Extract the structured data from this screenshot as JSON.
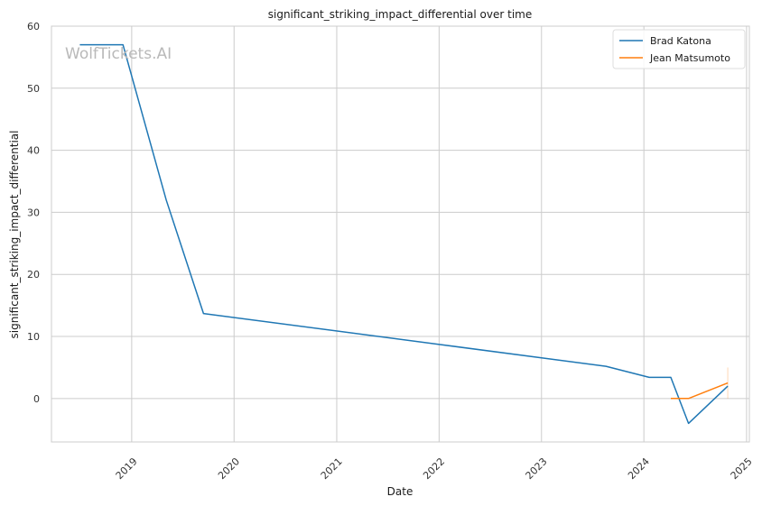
{
  "chart_data": {
    "type": "line",
    "title": "significant_striking_impact_differential over time",
    "xlabel": "Date",
    "ylabel": "significant_striking_impact_differential",
    "watermark": "WolfTickets.AI",
    "xlim": [
      "2018-03-21",
      "2025-01-11"
    ],
    "ylim": [
      -7,
      60
    ],
    "x_ticks": [
      "2019",
      "2020",
      "2021",
      "2022",
      "2023",
      "2024",
      "2025"
    ],
    "y_ticks": [
      0,
      10,
      20,
      30,
      40,
      50,
      60
    ],
    "grid": true,
    "legend_position": "top-right",
    "series": [
      {
        "name": "Brad Katona",
        "color": "#1f77b4",
        "points": [
          {
            "x": "2018-06-30",
            "y": 57
          },
          {
            "x": "2018-12-01",
            "y": 57
          },
          {
            "x": "2019-05-04",
            "y": 32
          },
          {
            "x": "2019-09-14",
            "y": 13.7
          },
          {
            "x": "2023-08-19",
            "y": 5.2
          },
          {
            "x": "2024-01-20",
            "y": 3.4
          },
          {
            "x": "2024-04-06",
            "y": 3.4
          },
          {
            "x": "2024-06-08",
            "y": -4
          },
          {
            "x": "2024-10-26",
            "y": 2
          }
        ]
      },
      {
        "name": "Jean Matsumoto",
        "color": "#ff7f0e",
        "points": [
          {
            "x": "2024-04-06",
            "y": 0
          },
          {
            "x": "2024-06-08",
            "y": 0
          },
          {
            "x": "2024-10-26",
            "y": 2.5
          }
        ],
        "error_bars": [
          {
            "x": "2024-10-26",
            "low": 0,
            "high": 5
          }
        ]
      }
    ]
  }
}
